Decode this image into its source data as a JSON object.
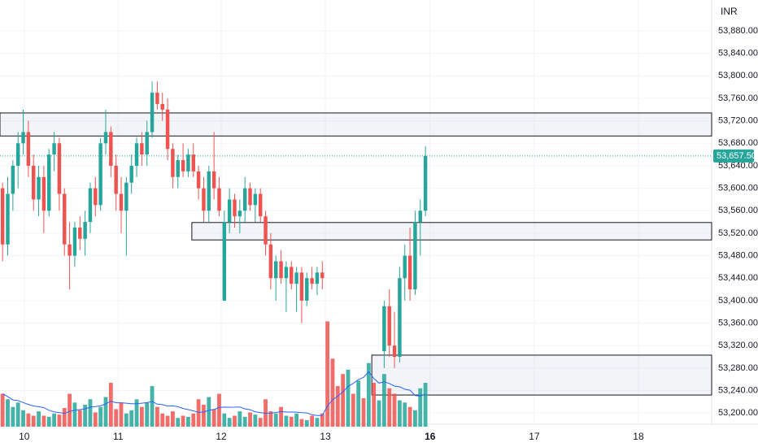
{
  "chart_data": {
    "type": "candlestick",
    "currency": "INR",
    "ylim": [
      53180,
      53935
    ],
    "yticks": [
      {
        "value": 53200,
        "label": "53,200.00"
      },
      {
        "value": 53240,
        "label": "53,240.00"
      },
      {
        "value": 53280,
        "label": "53,280.00"
      },
      {
        "value": 53320,
        "label": "53,320.00"
      },
      {
        "value": 53360,
        "label": "53,360.00"
      },
      {
        "value": 53400,
        "label": "53,400.00"
      },
      {
        "value": 53440,
        "label": "53,440.00"
      },
      {
        "value": 53480,
        "label": "53,480.00"
      },
      {
        "value": 53520,
        "label": "53,520.00"
      },
      {
        "value": 53560,
        "label": "53,560.00"
      },
      {
        "value": 53600,
        "label": "53,600.00"
      },
      {
        "value": 53640,
        "label": "53,640.00"
      },
      {
        "value": 53680,
        "label": "53,680.00"
      },
      {
        "value": 53720,
        "label": "53,720.00"
      },
      {
        "value": 53760,
        "label": "53,760.00"
      },
      {
        "value": 53800,
        "label": "53,800.00"
      },
      {
        "value": 53840,
        "label": "53,840.00"
      },
      {
        "value": 53880,
        "label": "53,880.00"
      }
    ],
    "xlim": [
      -0.5,
      137.5
    ],
    "xticks": [
      {
        "value": 4.2,
        "label": "10"
      },
      {
        "value": 22.4,
        "label": "11"
      },
      {
        "value": 42.4,
        "label": "12"
      },
      {
        "value": 62.6,
        "label": "13"
      },
      {
        "value": 82.9,
        "label": "16"
      },
      {
        "value": 103.1,
        "label": "17"
      },
      {
        "value": 123.3,
        "label": "18"
      }
    ],
    "bold_xtick": 4,
    "up_color": "#26a69a",
    "down_color": "#ef5350",
    "grid": true,
    "ohlc": [
      [
        53600,
        53610,
        53470,
        53500
      ],
      [
        53500,
        53620,
        53480,
        53590
      ],
      [
        53590,
        53650,
        53560,
        53640
      ],
      [
        53640,
        53700,
        53600,
        53680
      ],
      [
        53680,
        53740,
        53660,
        53700
      ],
      [
        53700,
        53720,
        53620,
        53640
      ],
      [
        53640,
        53660,
        53560,
        53580
      ],
      [
        53580,
        53640,
        53550,
        53620
      ],
      [
        53620,
        53640,
        53520,
        53560
      ],
      [
        53560,
        53670,
        53550,
        53660
      ],
      [
        53660,
        53700,
        53630,
        53680
      ],
      [
        53680,
        53690,
        53560,
        53590
      ],
      [
        53590,
        53600,
        53480,
        53500
      ],
      [
        53500,
        53540,
        53420,
        53480
      ],
      [
        53480,
        53540,
        53460,
        53530
      ],
      [
        53530,
        53550,
        53490,
        53510
      ],
      [
        53510,
        53560,
        53480,
        53540
      ],
      [
        53540,
        53610,
        53520,
        53600
      ],
      [
        53600,
        53620,
        53550,
        53570
      ],
      [
        53570,
        53690,
        53560,
        53680
      ],
      [
        53680,
        53740,
        53660,
        53700
      ],
      [
        53700,
        53710,
        53620,
        53640
      ],
      [
        53640,
        53660,
        53560,
        53590
      ],
      [
        53590,
        53620,
        53520,
        53560
      ],
      [
        53560,
        53620,
        53480,
        53610
      ],
      [
        53610,
        53660,
        53590,
        53640
      ],
      [
        53640,
        53690,
        53620,
        53680
      ],
      [
        53680,
        53700,
        53640,
        53660
      ],
      [
        53660,
        53720,
        53640,
        53700
      ],
      [
        53700,
        53790,
        53690,
        53770
      ],
      [
        53770,
        53790,
        53740,
        53750
      ],
      [
        53750,
        53770,
        53720,
        53740
      ],
      [
        53740,
        53760,
        53650,
        53670
      ],
      [
        53670,
        53680,
        53600,
        53620
      ],
      [
        53620,
        53660,
        53600,
        53650
      ],
      [
        53650,
        53680,
        53620,
        53630
      ],
      [
        53630,
        53670,
        53620,
        53660
      ],
      [
        53660,
        53680,
        53620,
        53630
      ],
      [
        53630,
        53640,
        53580,
        53600
      ],
      [
        53600,
        53620,
        53540,
        53560
      ],
      [
        53560,
        53640,
        53540,
        53630
      ],
      [
        53630,
        53700,
        53580,
        53600
      ],
      [
        53600,
        53620,
        53550,
        53560
      ],
      [
        53400,
        53560,
        53400,
        53540
      ],
      [
        53540,
        53600,
        53520,
        53580
      ],
      [
        53580,
        53590,
        53530,
        53550
      ],
      [
        53550,
        53580,
        53520,
        53560
      ],
      [
        53560,
        53620,
        53540,
        53600
      ],
      [
        53600,
        53610,
        53560,
        53570
      ],
      [
        53570,
        53600,
        53540,
        53590
      ],
      [
        53590,
        53600,
        53540,
        53550
      ],
      [
        53550,
        53560,
        53480,
        53500
      ],
      [
        53500,
        53520,
        53420,
        53440
      ],
      [
        53440,
        53480,
        53400,
        53470
      ],
      [
        53470,
        53490,
        53430,
        53440
      ],
      [
        53440,
        53470,
        53380,
        53460
      ],
      [
        53460,
        53470,
        53420,
        53430
      ],
      [
        53430,
        53460,
        53380,
        53450
      ],
      [
        53450,
        53460,
        53360,
        53400
      ],
      [
        53400,
        53450,
        53390,
        53440
      ],
      [
        53440,
        53460,
        53420,
        53430
      ],
      [
        53430,
        53460,
        53410,
        53450
      ],
      [
        53450,
        53470,
        53420,
        53440
      ],
      null,
      null,
      null,
      null,
      null,
      null,
      null,
      null,
      null,
      null,
      null,
      [
        53310,
        53400,
        53280,
        53390
      ],
      [
        53390,
        53420,
        53300,
        53320
      ],
      [
        53320,
        53380,
        53280,
        53300
      ],
      [
        53300,
        53460,
        53290,
        53440
      ],
      [
        53440,
        53500,
        53400,
        53480
      ],
      [
        53480,
        53530,
        53400,
        53420
      ],
      [
        53420,
        53560,
        53410,
        53540
      ],
      [
        53540,
        53580,
        53480,
        53560
      ],
      [
        53560,
        53675,
        53550,
        53657.5
      ]
    ],
    "volume": [
      30,
      25,
      18,
      22,
      15,
      12,
      10,
      14,
      10,
      9,
      12,
      11,
      17,
      30,
      22,
      15,
      20,
      25,
      13,
      18,
      27,
      40,
      16,
      22,
      12,
      15,
      25,
      18,
      22,
      37,
      18,
      12,
      10,
      14,
      8,
      10,
      9,
      12,
      25,
      20,
      27,
      16,
      30,
      12,
      8,
      10,
      14,
      9,
      13,
      11,
      8,
      25,
      14,
      12,
      18,
      10,
      9,
      12,
      7,
      6,
      10,
      8,
      12,
      96,
      62,
      37,
      48,
      52,
      30,
      42,
      26,
      58,
      40,
      24,
      48,
      35,
      30,
      24,
      22,
      18,
      15,
      35,
      40
    ],
    "volume_colors_missing": [
      "#ef5350",
      "#ef5350",
      "#ef5350",
      "#ef5350",
      "#26a69a",
      "#ef5350",
      "#26a69a",
      "#ef5350",
      "#26a69a",
      "#ef5350",
      "#26a69a"
    ],
    "volume_max": 100,
    "zones": [
      {
        "x0": -0.5,
        "low": 53693,
        "high": 53734
      },
      {
        "x0": 36.7,
        "low": 53508,
        "high": 53539
      },
      {
        "x0": 71.6,
        "low": 53232,
        "high": 53303
      }
    ],
    "last_price": {
      "value": 53657.5,
      "label": "53,657.50"
    }
  }
}
